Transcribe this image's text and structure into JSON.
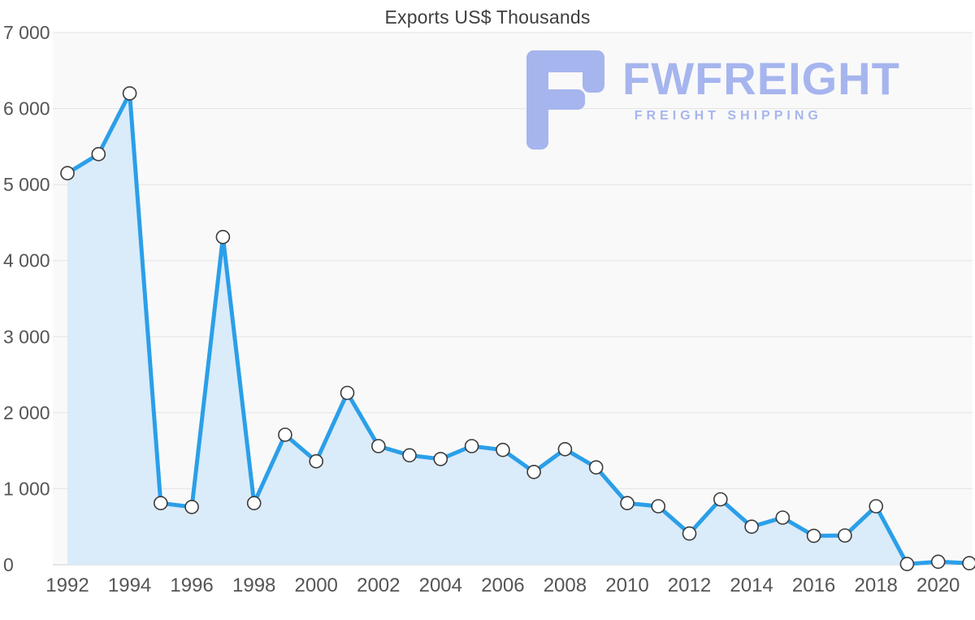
{
  "title": "Exports US$ Thousands",
  "watermark": {
    "brand": "FWFREIGHT",
    "tagline": "FREIGHT SHIPPING"
  },
  "colors": {
    "line": "#2b9fe8",
    "area": "#daebfa",
    "marker_fill": "#ffffff",
    "marker_stroke": "#3b3b3b",
    "grid": "#e3e3e3",
    "axis": "#cfcfcf",
    "plot_bg": "#f9f9f9",
    "tick_label": "#555555",
    "title": "#3e3e3e",
    "logo": "#a6b5ee"
  },
  "chart_data": {
    "type": "line",
    "title": "Exports US$ Thousands",
    "xlabel": "",
    "ylabel": "",
    "x": [
      1992,
      1993,
      1994,
      1995,
      1996,
      1997,
      1998,
      1999,
      2000,
      2001,
      2002,
      2003,
      2004,
      2005,
      2006,
      2007,
      2008,
      2009,
      2010,
      2011,
      2012,
      2013,
      2014,
      2015,
      2016,
      2017,
      2018,
      2019,
      2020,
      2021
    ],
    "series": [
      {
        "name": "Exports US$ Thousands",
        "values": [
          5150,
          5400,
          6200,
          810,
          760,
          4310,
          810,
          1710,
          1360,
          2260,
          1560,
          1440,
          1390,
          1560,
          1510,
          1220,
          1520,
          1280,
          810,
          770,
          410,
          860,
          500,
          620,
          380,
          385,
          770,
          10,
          40,
          20
        ]
      }
    ],
    "ylim": [
      0,
      7000
    ],
    "y_ticks": [
      0,
      1000,
      2000,
      3000,
      4000,
      5000,
      6000,
      7000
    ],
    "y_tick_labels": [
      "0",
      "1 000",
      "2 000",
      "3 000",
      "4 000",
      "5 000",
      "6 000",
      "7 000"
    ],
    "x_tick_step": 2,
    "grid": true,
    "legend": "none",
    "marker": "circle-open",
    "area_fill": true
  }
}
